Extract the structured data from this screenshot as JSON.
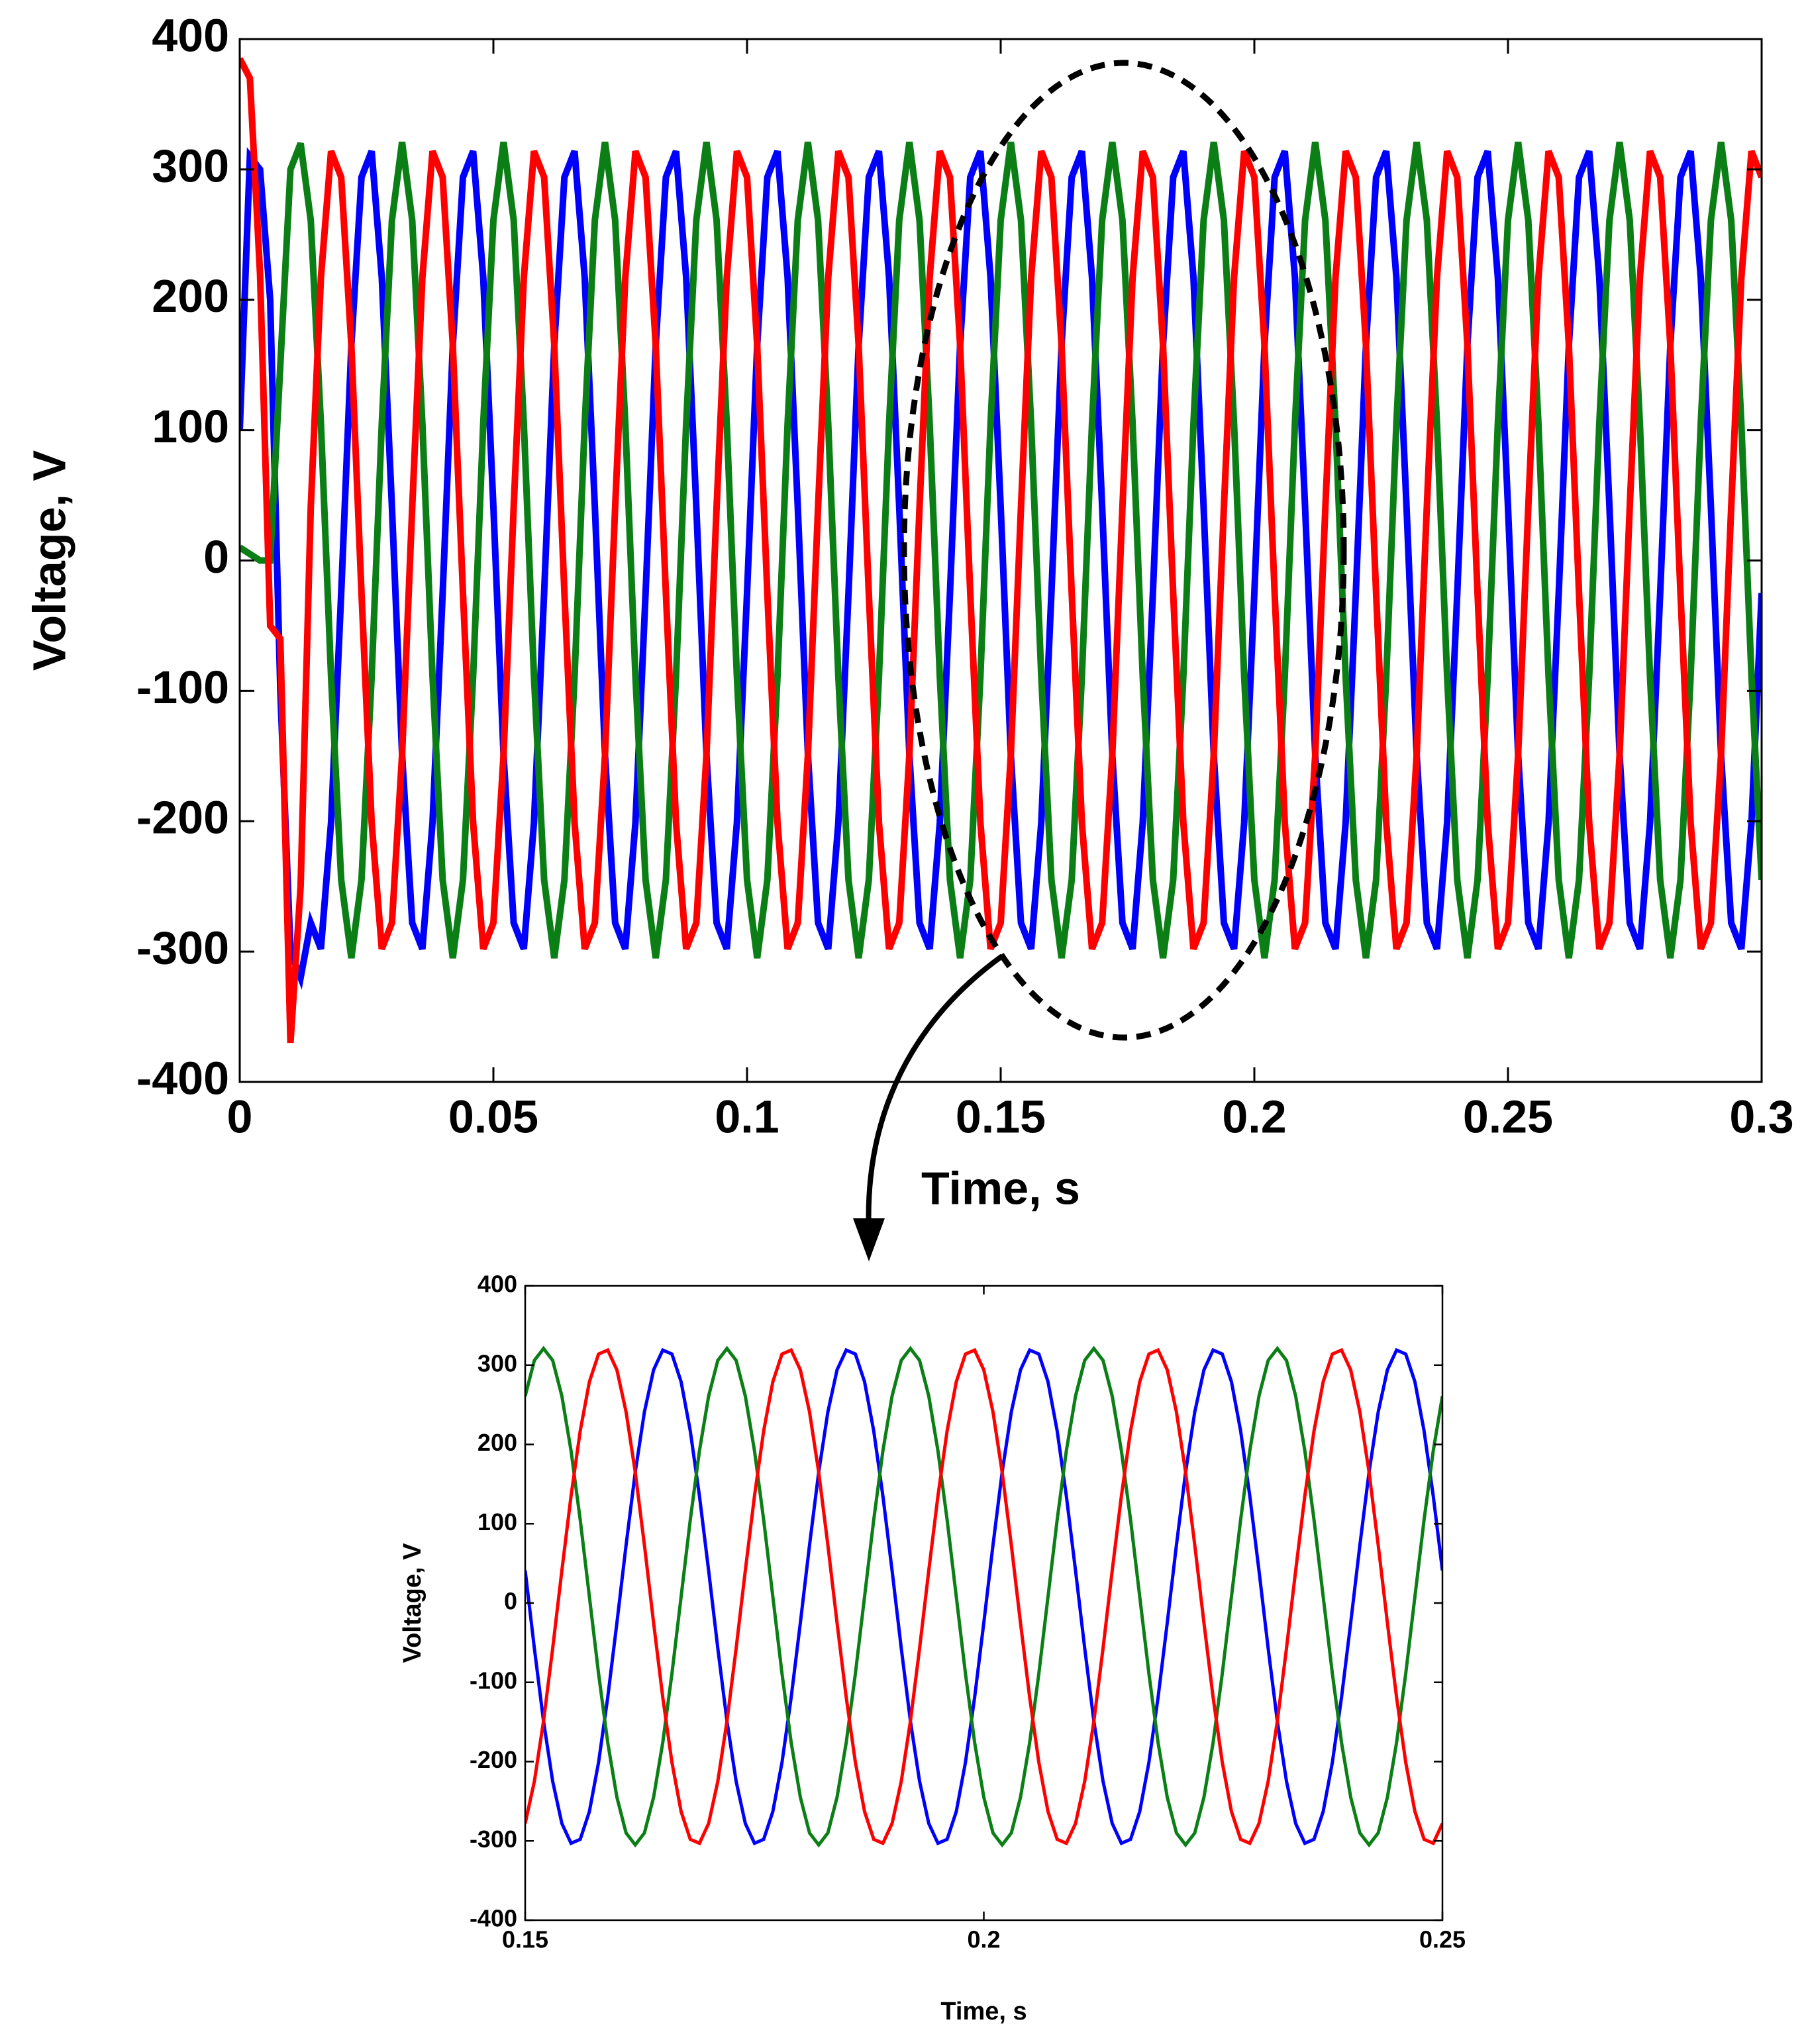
{
  "chart_data": [
    {
      "type": "line",
      "xlabel": "Time, s",
      "ylabel": "Voltage, V",
      "xlim": [
        0,
        0.3
      ],
      "ylim": [
        -400,
        400
      ],
      "xticks": [
        0,
        0.05,
        0.1,
        0.15,
        0.2,
        0.25,
        0.3
      ],
      "yticks": [
        -400,
        -300,
        -200,
        -100,
        0,
        100,
        200,
        300,
        400
      ],
      "x": [
        0,
        0.002,
        0.004,
        0.006,
        0.008,
        0.01,
        0.012,
        0.014,
        0.016,
        0.018,
        0.02,
        0.022,
        0.024,
        0.026,
        0.028,
        0.03,
        0.032,
        0.034,
        0.036,
        0.038,
        0.04,
        0.042,
        0.044,
        0.046,
        0.048,
        0.05,
        0.052,
        0.054,
        0.056,
        0.058,
        0.06,
        0.062,
        0.064,
        0.066,
        0.068,
        0.07,
        0.072,
        0.074,
        0.076,
        0.078,
        0.08,
        0.082,
        0.084,
        0.086,
        0.088,
        0.09,
        0.092,
        0.094,
        0.096,
        0.098,
        0.1,
        0.102,
        0.104,
        0.106,
        0.108,
        0.11,
        0.112,
        0.114,
        0.116,
        0.118,
        0.12,
        0.122,
        0.124,
        0.126,
        0.128,
        0.13,
        0.132,
        0.134,
        0.136,
        0.138,
        0.14,
        0.142,
        0.144,
        0.146,
        0.148,
        0.15,
        0.152,
        0.154,
        0.156,
        0.158,
        0.16,
        0.162,
        0.164,
        0.166,
        0.168,
        0.17,
        0.172,
        0.174,
        0.176,
        0.178,
        0.18,
        0.182,
        0.184,
        0.186,
        0.188,
        0.19,
        0.192,
        0.194,
        0.196,
        0.198,
        0.2,
        0.202,
        0.204,
        0.206,
        0.208,
        0.21,
        0.212,
        0.214,
        0.216,
        0.218,
        0.22,
        0.222,
        0.224,
        0.226,
        0.228,
        0.23,
        0.232,
        0.234,
        0.236,
        0.238,
        0.24,
        0.242,
        0.244,
        0.246,
        0.248,
        0.25,
        0.252,
        0.254,
        0.256,
        0.258,
        0.26,
        0.262,
        0.264,
        0.266,
        0.268,
        0.27,
        0.272,
        0.274,
        0.276,
        0.278,
        0.28,
        0.282,
        0.284,
        0.286,
        0.288,
        0.29,
        0.292,
        0.294,
        0.296,
        0.298,
        0.3
      ],
      "series": [
        {
          "color": "#0000ff",
          "values": [
            100,
            310,
            300,
            200,
            -100,
            -300,
            -320,
            -278,
            -298,
            -201,
            -25,
            165,
            294,
            314,
            217,
            41,
            -149,
            -278,
            -298,
            -201,
            -25,
            165,
            294,
            314,
            217,
            41,
            -149,
            -278,
            -298,
            -201,
            -25,
            165,
            294,
            314,
            217,
            41,
            -149,
            -278,
            -298,
            -201,
            -25,
            165,
            294,
            314,
            217,
            41,
            -149,
            -278,
            -298,
            -201,
            -25,
            165,
            294,
            314,
            217,
            41,
            -149,
            -278,
            -298,
            -201,
            -25,
            165,
            294,
            314,
            217,
            41,
            -149,
            -278,
            -298,
            -201,
            -25,
            165,
            294,
            314,
            217,
            41,
            -149,
            -278,
            -298,
            -201,
            -25,
            165,
            294,
            314,
            217,
            41,
            -149,
            -278,
            -298,
            -201,
            -25,
            165,
            294,
            314,
            217,
            41,
            -149,
            -278,
            -298,
            -201,
            -25,
            165,
            294,
            314,
            217,
            41,
            -149,
            -278,
            -298,
            -201,
            -25,
            165,
            294,
            314,
            217,
            41,
            -149,
            -278,
            -298,
            -201,
            -25,
            165,
            294,
            314,
            217,
            41,
            -149,
            -278,
            -298,
            -201,
            -25,
            165,
            294,
            314,
            217,
            41,
            -149,
            -278,
            -298,
            -201,
            -25,
            165,
            294,
            314,
            217,
            41,
            -149,
            -278,
            -298,
            -201,
            -25
          ]
        },
        {
          "color": "#0b7f16",
          "values": [
            10,
            5,
            0,
            0,
            150,
            300,
            320,
            261,
            105,
            -89,
            -245,
            -305,
            -245,
            -89,
            105,
            261,
            321,
            261,
            105,
            -89,
            -245,
            -305,
            -245,
            -89,
            105,
            261,
            321,
            261,
            105,
            -89,
            -245,
            -305,
            -245,
            -89,
            105,
            261,
            321,
            261,
            105,
            -89,
            -245,
            -305,
            -245,
            -89,
            105,
            261,
            321,
            261,
            105,
            -89,
            -245,
            -305,
            -245,
            -89,
            105,
            261,
            321,
            261,
            105,
            -89,
            -245,
            -305,
            -245,
            -89,
            105,
            261,
            321,
            261,
            105,
            -89,
            -245,
            -305,
            -245,
            -89,
            105,
            261,
            321,
            261,
            105,
            -89,
            -245,
            -305,
            -245,
            -89,
            105,
            261,
            321,
            261,
            105,
            -89,
            -245,
            -305,
            -245,
            -89,
            105,
            261,
            321,
            261,
            105,
            -89,
            -245,
            -305,
            -245,
            -89,
            105,
            261,
            321,
            261,
            105,
            -89,
            -245,
            -305,
            -245,
            -89,
            105,
            261,
            321,
            261,
            105,
            -89,
            -245,
            -305,
            -245,
            -89,
            105,
            261,
            321,
            261,
            105,
            -89,
            -245,
            -305,
            -245,
            -89,
            105,
            261,
            321,
            261,
            105,
            -89,
            -245,
            -305,
            -245,
            -89,
            105,
            261,
            321,
            261,
            105,
            -89,
            -245
          ]
        },
        {
          "color": "#ff0000",
          "values": [
            385,
            370,
            220,
            -50,
            -60,
            -370,
            -250,
            41,
            217,
            314,
            294,
            165,
            -25,
            -201,
            -298,
            -278,
            -149,
            41,
            217,
            314,
            294,
            165,
            -25,
            -201,
            -298,
            -278,
            -149,
            41,
            217,
            314,
            294,
            165,
            -25,
            -201,
            -298,
            -278,
            -149,
            41,
            217,
            314,
            294,
            165,
            -25,
            -201,
            -298,
            -278,
            -149,
            41,
            217,
            314,
            294,
            165,
            -25,
            -201,
            -298,
            -278,
            -149,
            41,
            217,
            314,
            294,
            165,
            -25,
            -201,
            -298,
            -278,
            -149,
            41,
            217,
            314,
            294,
            165,
            -25,
            -201,
            -298,
            -278,
            -149,
            41,
            217,
            314,
            294,
            165,
            -25,
            -201,
            -298,
            -278,
            -149,
            41,
            217,
            314,
            294,
            165,
            -25,
            -201,
            -298,
            -278,
            -149,
            41,
            217,
            314,
            294,
            165,
            -25,
            -201,
            -298,
            -278,
            -149,
            41,
            217,
            314,
            294,
            165,
            -25,
            -201,
            -298,
            -278,
            -149,
            41,
            217,
            314,
            294,
            165,
            -25,
            -201,
            -298,
            -278,
            -149,
            41,
            217,
            314,
            294,
            165,
            -25,
            -201,
            -298,
            -278,
            -149,
            41,
            217,
            314,
            294,
            165,
            -25,
            -201,
            -298,
            -278,
            -149,
            41,
            217,
            314,
            294
          ]
        }
      ]
    },
    {
      "type": "line",
      "xlabel": "Time, s",
      "ylabel": "Voltage, V",
      "xlim": [
        0.15,
        0.25
      ],
      "ylim": [
        -400,
        400
      ],
      "xticks": [
        0.15,
        0.2,
        0.25
      ],
      "yticks": [
        -400,
        -300,
        -200,
        -100,
        0,
        100,
        200,
        300,
        400
      ],
      "x": [
        0.15,
        0.151,
        0.152,
        0.153,
        0.154,
        0.155,
        0.156,
        0.157,
        0.158,
        0.159,
        0.16,
        0.161,
        0.162,
        0.163,
        0.164,
        0.165,
        0.166,
        0.167,
        0.168,
        0.169,
        0.17,
        0.171,
        0.172,
        0.173,
        0.174,
        0.175,
        0.176,
        0.177,
        0.178,
        0.179,
        0.18,
        0.181,
        0.182,
        0.183,
        0.184,
        0.185,
        0.186,
        0.187,
        0.188,
        0.189,
        0.19,
        0.191,
        0.192,
        0.193,
        0.194,
        0.195,
        0.196,
        0.197,
        0.198,
        0.199,
        0.2,
        0.201,
        0.202,
        0.203,
        0.204,
        0.205,
        0.206,
        0.207,
        0.208,
        0.209,
        0.21,
        0.211,
        0.212,
        0.213,
        0.214,
        0.215,
        0.216,
        0.217,
        0.218,
        0.219,
        0.22,
        0.221,
        0.222,
        0.223,
        0.224,
        0.225,
        0.226,
        0.227,
        0.228,
        0.229,
        0.23,
        0.231,
        0.232,
        0.233,
        0.234,
        0.235,
        0.236,
        0.237,
        0.238,
        0.239,
        0.24,
        0.241,
        0.242,
        0.243,
        0.244,
        0.245,
        0.246,
        0.247,
        0.248,
        0.249,
        0.25
      ],
      "series": [
        {
          "color": "#0000ff",
          "values": [
            41,
            -57,
            -149,
            -225,
            -278,
            -303,
            -298,
            -263,
            -201,
            -119,
            -25,
            73,
            165,
            241,
            294,
            319,
            314,
            279,
            217,
            135,
            41,
            -57,
            -149,
            -225,
            -278,
            -303,
            -298,
            -263,
            -201,
            -119,
            -25,
            73,
            165,
            241,
            294,
            319,
            314,
            279,
            217,
            135,
            41,
            -57,
            -149,
            -225,
            -278,
            -303,
            -298,
            -263,
            -201,
            -119,
            -25,
            73,
            165,
            241,
            294,
            319,
            314,
            279,
            217,
            135,
            41,
            -57,
            -149,
            -225,
            -278,
            -303,
            -298,
            -263,
            -201,
            -119,
            -25,
            73,
            165,
            241,
            294,
            319,
            314,
            279,
            217,
            135,
            41,
            -57,
            -149,
            -225,
            -278,
            -303,
            -298,
            -263,
            -201,
            -119,
            -25,
            73,
            165,
            241,
            294,
            319,
            314,
            279,
            217,
            135,
            41
          ]
        },
        {
          "color": "#0b7f16",
          "values": [
            261,
            306,
            321,
            306,
            261,
            192,
            105,
            8,
            -89,
            -176,
            -245,
            -290,
            -305,
            -290,
            -245,
            -176,
            -89,
            8,
            105,
            192,
            261,
            306,
            321,
            306,
            261,
            192,
            105,
            8,
            -89,
            -176,
            -245,
            -290,
            -305,
            -290,
            -245,
            -176,
            -89,
            8,
            105,
            192,
            261,
            306,
            321,
            306,
            261,
            192,
            105,
            8,
            -89,
            -176,
            -245,
            -290,
            -305,
            -290,
            -245,
            -176,
            -89,
            8,
            105,
            192,
            261,
            306,
            321,
            306,
            261,
            192,
            105,
            8,
            -89,
            -176,
            -245,
            -290,
            -305,
            -290,
            -245,
            -176,
            -89,
            8,
            105,
            192,
            261,
            306,
            321,
            306,
            261,
            192,
            105,
            8,
            -89,
            -176,
            -245,
            -290,
            -305,
            -290,
            -245,
            -176,
            -89,
            8,
            105,
            192,
            261
          ]
        },
        {
          "color": "#ff0000",
          "values": [
            -278,
            -225,
            -149,
            -57,
            41,
            135,
            217,
            279,
            314,
            319,
            294,
            241,
            165,
            73,
            -25,
            -119,
            -201,
            -263,
            -298,
            -303,
            -278,
            -225,
            -149,
            -57,
            41,
            135,
            217,
            279,
            314,
            319,
            294,
            241,
            165,
            73,
            -25,
            -119,
            -201,
            -263,
            -298,
            -303,
            -278,
            -225,
            -149,
            -57,
            41,
            135,
            217,
            279,
            314,
            319,
            294,
            241,
            165,
            73,
            -25,
            -119,
            -201,
            -263,
            -298,
            -303,
            -278,
            -225,
            -149,
            -57,
            41,
            135,
            217,
            279,
            314,
            319,
            294,
            241,
            165,
            73,
            -25,
            -119,
            -201,
            -263,
            -298,
            -303,
            -278,
            -225,
            -149,
            -57,
            41,
            135,
            217,
            279,
            314,
            319,
            294,
            241,
            165,
            73,
            -25,
            -119,
            -201,
            -263,
            -298,
            -303,
            -278
          ]
        }
      ]
    }
  ]
}
